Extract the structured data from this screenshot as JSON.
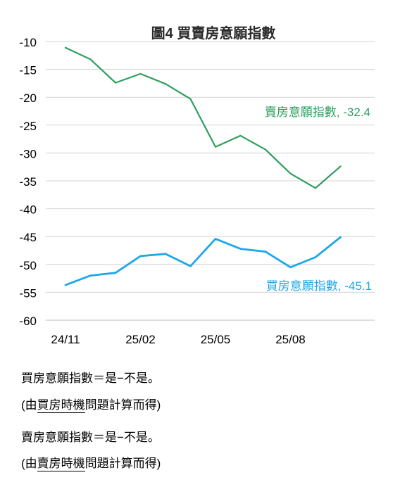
{
  "chart_data": {
    "type": "line",
    "title": "圖4  買賣房意願指數",
    "xlabel": "",
    "ylabel": "",
    "ylim": [
      -60,
      -10
    ],
    "yticks": [
      -10,
      -15,
      -20,
      -25,
      -30,
      -35,
      -40,
      -45,
      -50,
      -55,
      -60
    ],
    "grid": true,
    "x": [
      "24/11",
      "24/12",
      "25/01",
      "25/02",
      "25/03",
      "25/04",
      "25/05",
      "25/06",
      "25/07",
      "25/08",
      "25/09",
      "25/10"
    ],
    "xtick_labels": [
      "24/11",
      "25/02",
      "25/05",
      "25/08"
    ],
    "series": [
      {
        "name": "賣房意願指數",
        "color": "#2e9e5e",
        "values": [
          -11.1,
          -13.2,
          -17.4,
          -15.8,
          -17.6,
          -20.3,
          -28.9,
          -26.9,
          -29.4,
          -33.7,
          -36.3,
          -32.4
        ],
        "end_label": "賣房意願指數, -32.4"
      },
      {
        "name": "買房意願指數",
        "color": "#1ea7e8",
        "values": [
          -53.7,
          -52.0,
          -51.5,
          -48.5,
          -48.1,
          -50.3,
          -45.4,
          -47.2,
          -47.7,
          -50.5,
          -48.7,
          -45.1
        ],
        "end_label": "買房意願指數, -45.1"
      }
    ]
  },
  "notes": {
    "buy_formula": "買房意願指數＝是−不是。",
    "buy_source_open": "(由",
    "buy_source_underlined": "買房時機",
    "buy_source_rest": "問題計算而得)",
    "sell_formula": "賣房意願指數＝是−不是。",
    "sell_source_open": "(由",
    "sell_source_underlined": "賣房時機",
    "sell_source_rest": "問題計算而得)"
  }
}
